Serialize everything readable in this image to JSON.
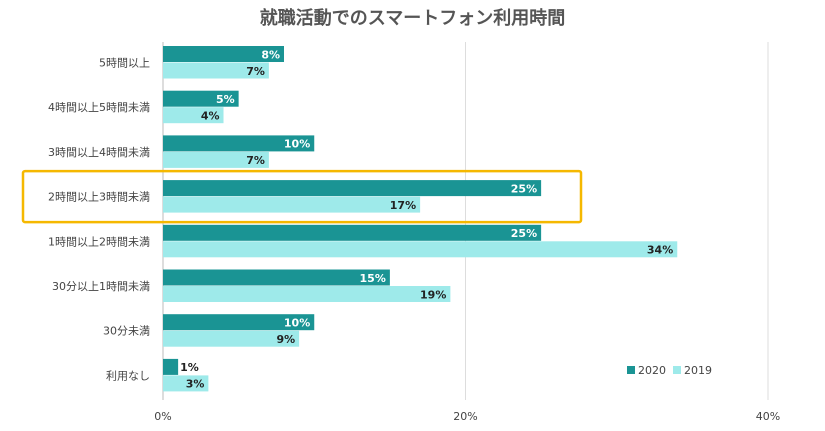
{
  "chart_data": {
    "type": "bar",
    "orientation": "horizontal",
    "title": "就職活動でのスマートフォン利用時間",
    "categories": [
      "5時間以上",
      "4時間以上5時間未満",
      "3時間以上4時間未満",
      "2時間以上3時間未満",
      "1時間以上2時間未満",
      "30分以上1時間未満",
      "30分未満",
      "利用なし"
    ],
    "series": [
      {
        "name": "2020",
        "values": [
          8,
          5,
          10,
          25,
          25,
          15,
          10,
          1
        ],
        "labels": [
          "8%",
          "5%",
          "10%",
          "25%",
          "25%",
          "15%",
          "10%",
          "1%"
        ],
        "color": "#1a9494"
      },
      {
        "name": "2019",
        "values": [
          7,
          4,
          7,
          17,
          34,
          19,
          9,
          3
        ],
        "labels": [
          "7%",
          "4%",
          "7%",
          "17%",
          "34%",
          "19%",
          "9%",
          "3%"
        ],
        "color": "#9eeaea"
      }
    ],
    "x_ticks": [
      "0%",
      "20%",
      "40%"
    ],
    "xlim": [
      0,
      40
    ],
    "grid": true,
    "legend_position": "bottom-right",
    "highlighted_category": "2時間以上3時間未満",
    "highlight_color": "#f5b800"
  }
}
